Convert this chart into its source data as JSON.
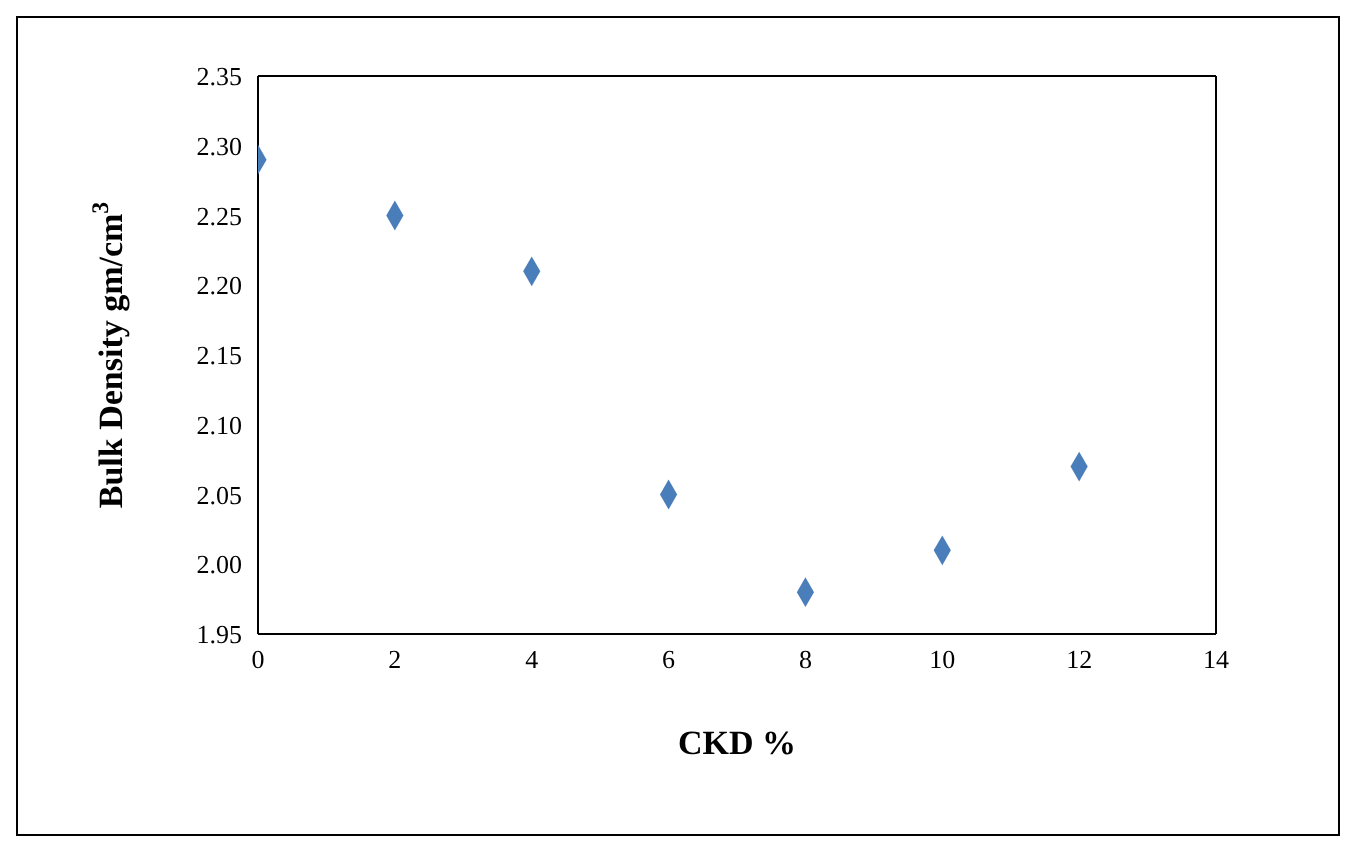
{
  "chart_data": {
    "type": "scatter",
    "xlabel": "CKD %",
    "ylabel": "Bulk Density gm/cm$^{3}$",
    "x": [
      0,
      2,
      4,
      6,
      8,
      10,
      12
    ],
    "series": [
      {
        "color": "#4a7ebb",
        "values": [
          2.29,
          2.25,
          2.21,
          2.05,
          1.98,
          2.01,
          2.07
        ]
      }
    ],
    "xlim": [
      0,
      14
    ],
    "xticks": [
      0,
      2,
      4,
      6,
      8,
      10,
      12,
      14
    ],
    "ylim": [
      1.95,
      2.35
    ],
    "yticks": [
      1.95,
      {
        "value": 2,
        "label": "2.00"
      },
      2.05,
      {
        "value": 2.1,
        "label": "2.10"
      },
      2.15,
      {
        "value": 2.2,
        "label": "2.20"
      },
      2.25,
      {
        "value": 2.3,
        "label": "2.30"
      },
      2.35
    ],
    "grid": false,
    "legend": false,
    "marker": "diamond"
  }
}
